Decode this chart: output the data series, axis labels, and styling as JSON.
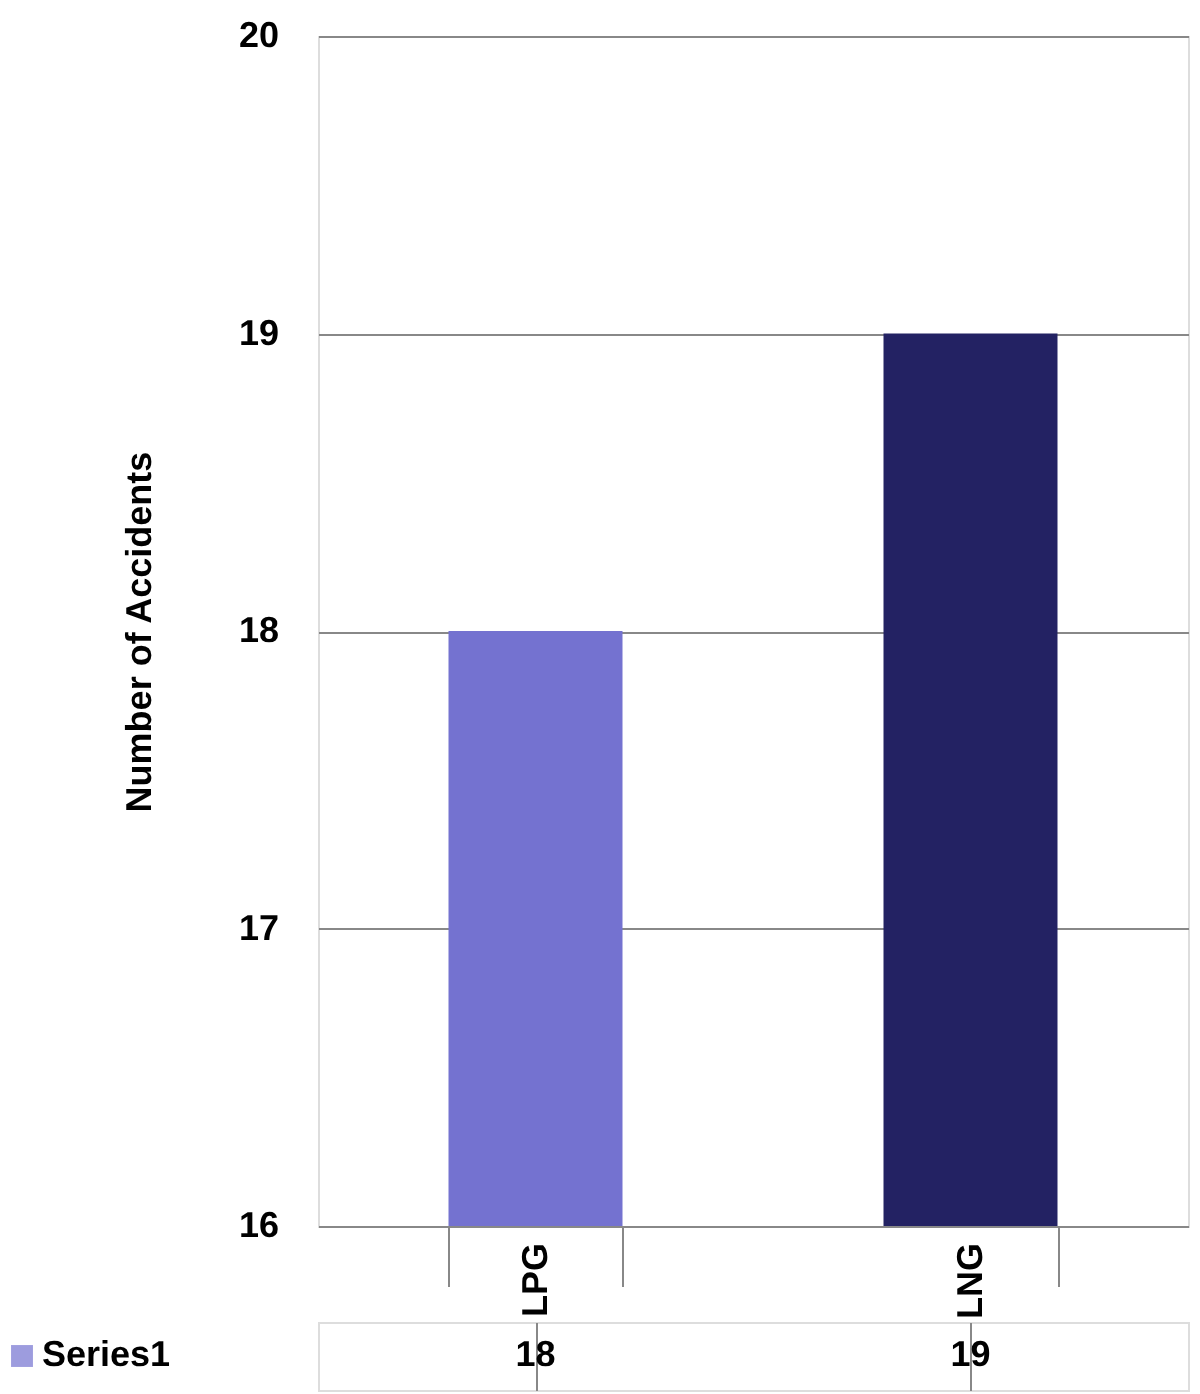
{
  "chart_data": {
    "type": "bar",
    "ylabel": "Number of Accidents",
    "categories": [
      "LPG",
      "LNG"
    ],
    "series": [
      {
        "name": "Series1",
        "values": [
          18,
          19
        ]
      }
    ],
    "colors": [
      "#7472d0",
      "#232263"
    ],
    "ylim": [
      16,
      20
    ],
    "yticks": [
      16,
      17,
      18,
      19,
      20
    ],
    "grid": "y",
    "data_labels": true,
    "legend": "bottom"
  }
}
